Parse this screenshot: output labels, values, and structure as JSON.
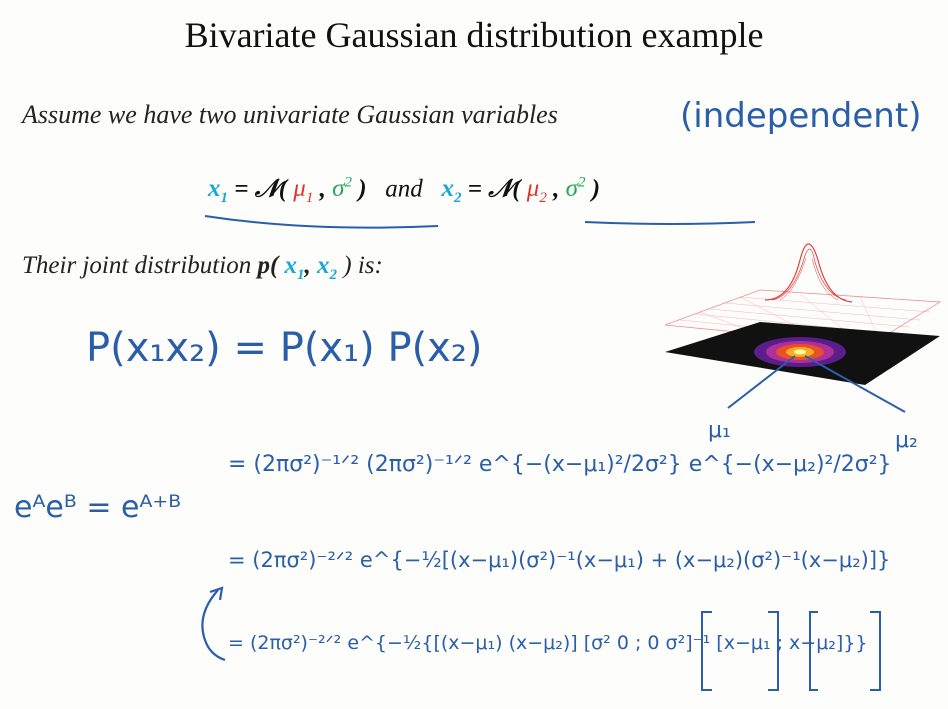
{
  "title": "Bivariate Gaussian distribution example",
  "intro": {
    "text": "Assume we have two univariate Gaussian variables",
    "note": "(independent)"
  },
  "definition": {
    "x1": "x",
    "x1_sub": "1",
    "normal": "𝒩",
    "mu1": "μ",
    "mu1_sub": "1",
    "sigma": "σ",
    "sigma_sup": "2",
    "and": "and",
    "x2": "x",
    "x2_sub": "2",
    "mu2": "μ",
    "mu2_sub": "2"
  },
  "joint": {
    "prefix": "Their joint distribution",
    "p": "p(",
    "x1": "x",
    "x1_sub": "1",
    "x2": "x",
    "x2_sub": "2",
    "suffix": ") is:"
  },
  "handwriting": {
    "line1": "P(x₁x₂) = P(x₁) P(x₂)",
    "line2_left": "eᴬeᴮ = eᴬ⁺ᴮ",
    "line2": "= (2πσ²)⁻¹ᐟ² (2πσ²)⁻¹ᐟ² e^{−(x−μ₁)²/2σ²}  e^{−(x−μ₂)²/2σ²}",
    "line3": "= (2πσ²)⁻²ᐟ² e^{−½[(x−μ₁)(σ²)⁻¹(x−μ₁) + (x−μ₂)(σ²)⁻¹(x−μ₂)]}",
    "line4": "= (2πσ²)⁻²ᐟ² e^{−½{[(x−μ₁) (x−μ₂)] [σ² 0 ; 0 σ²]⁻¹ [x−μ₁ ; x−μ₂]}}",
    "label_mu1": "μ₁",
    "label_mu2": "μ₂"
  },
  "colors": {
    "ink": "#2a5ea8",
    "variable": "#1aa7d8",
    "mean": "#e0342a",
    "variance": "#1faa55"
  },
  "figure": {
    "description_icon": "bivariate-gaussian-surface-icon"
  }
}
